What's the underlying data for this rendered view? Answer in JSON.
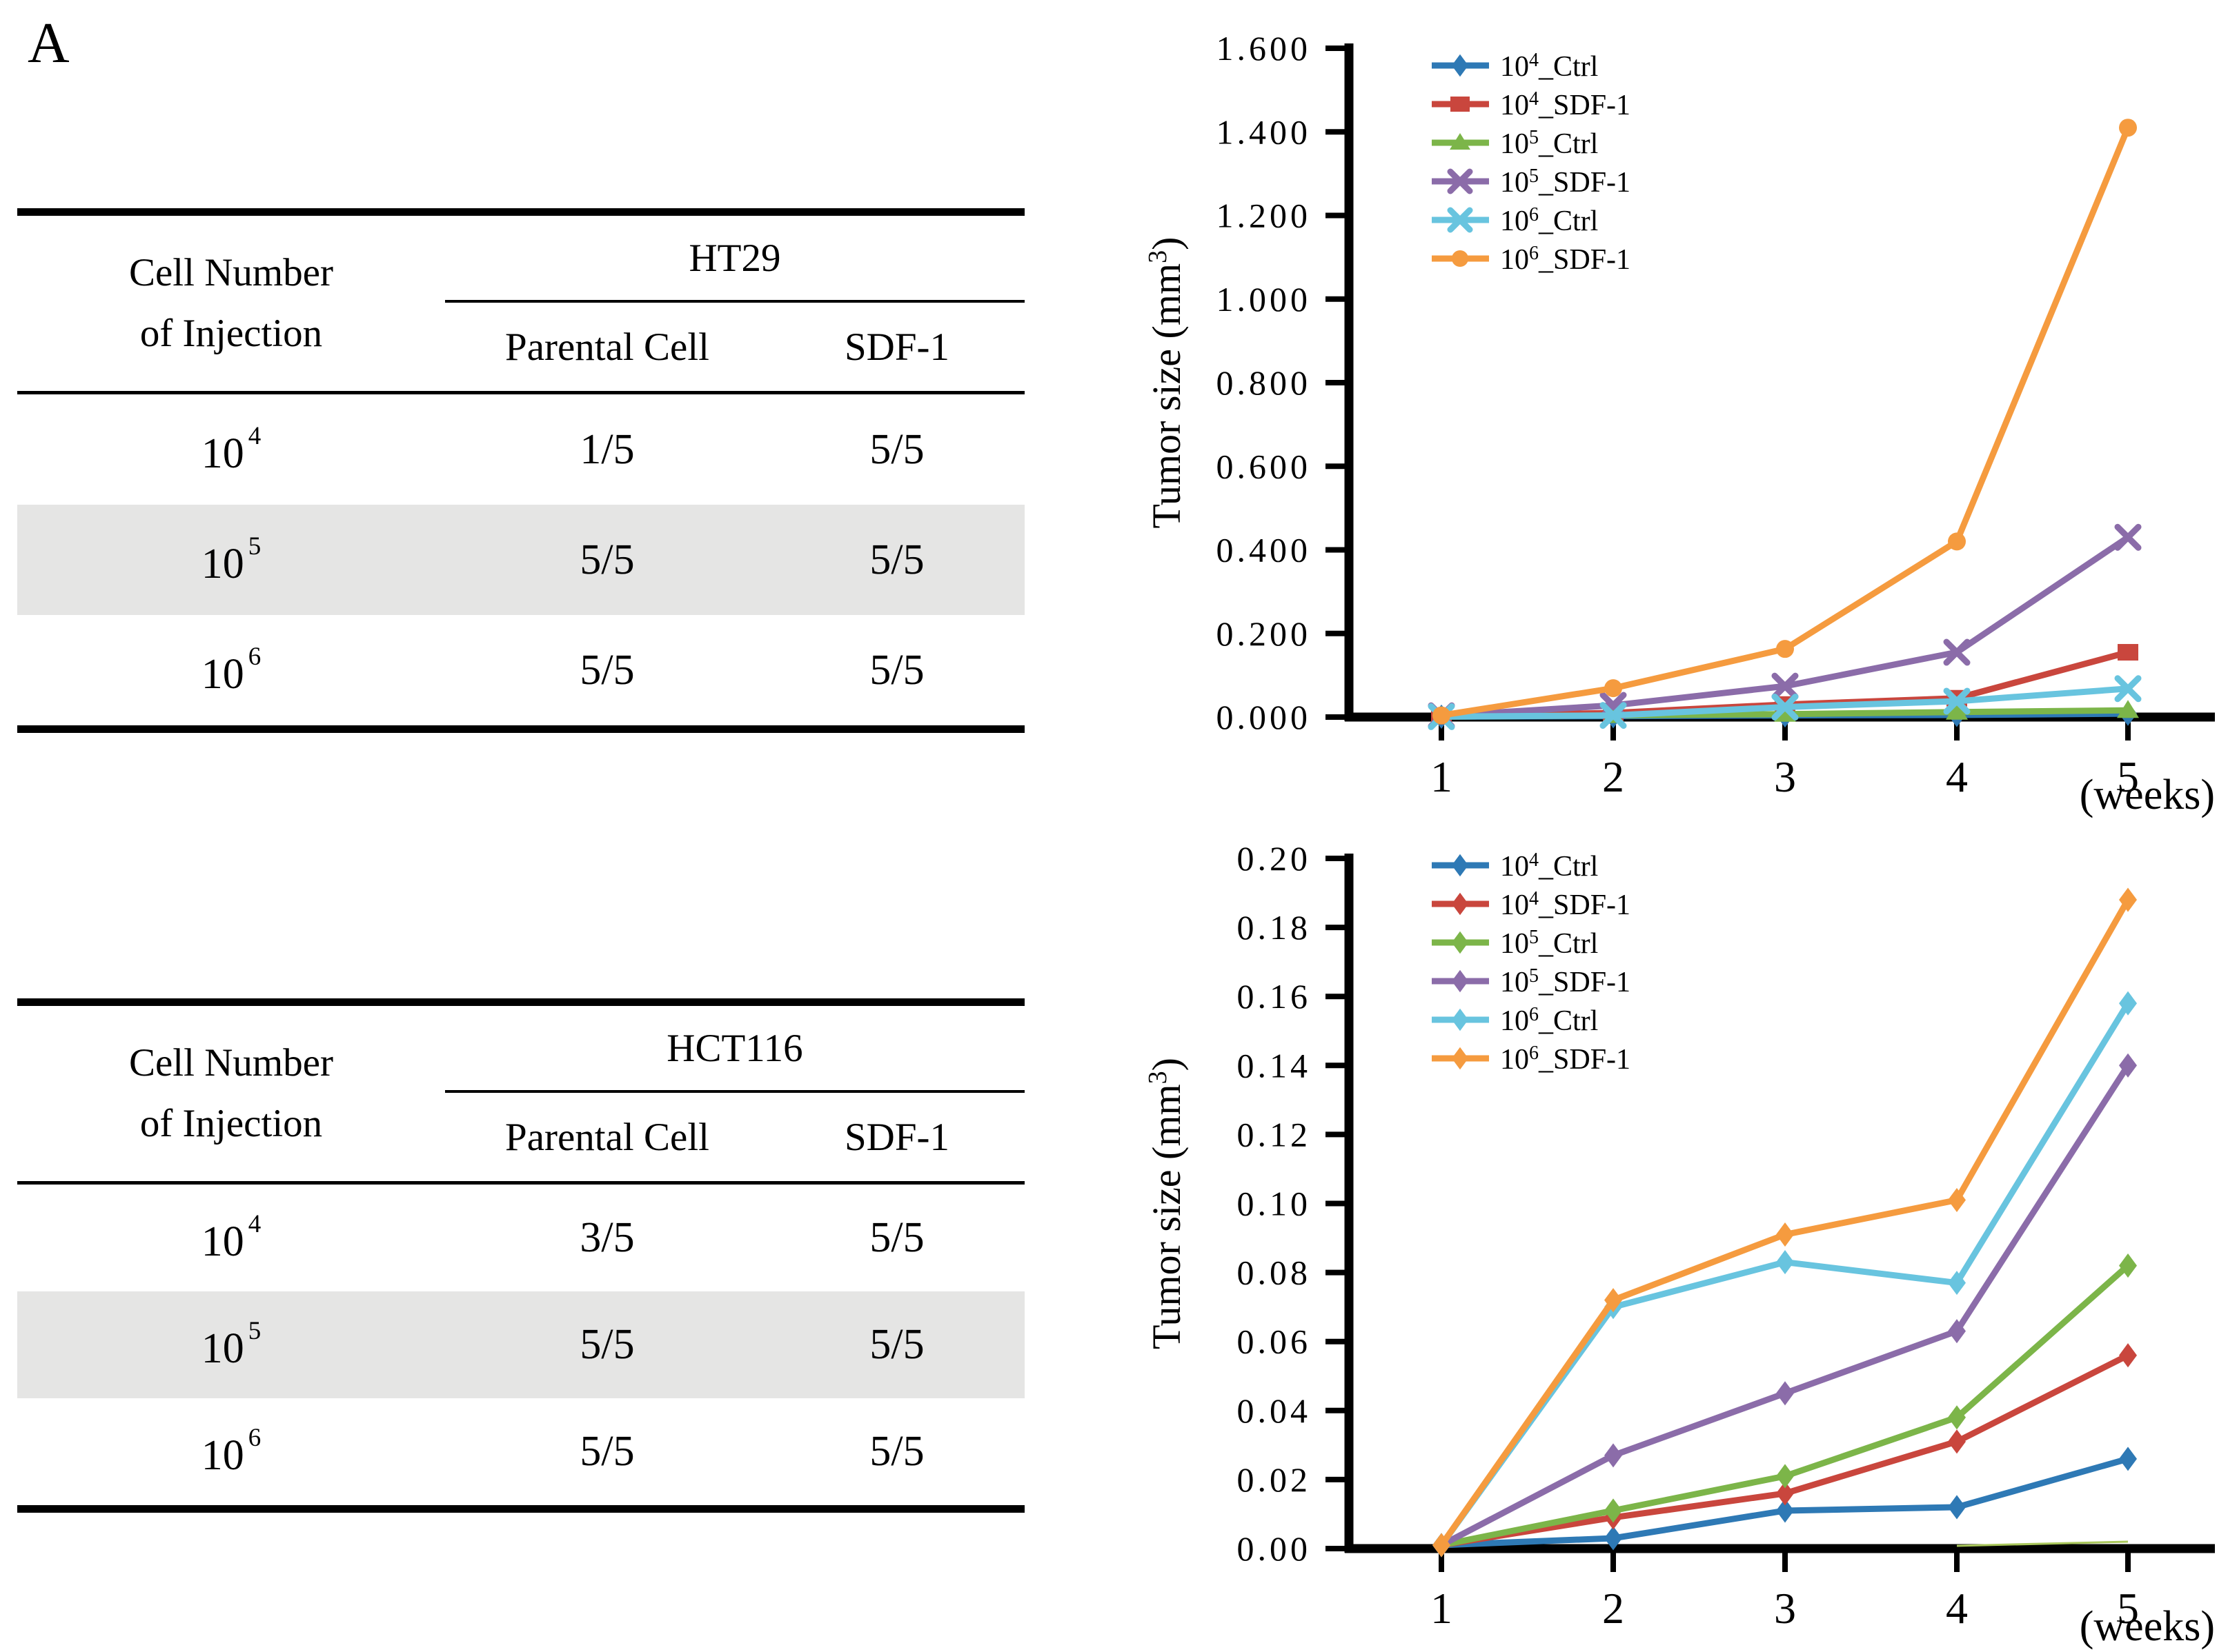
{
  "panel_label": "A",
  "tables": [
    {
      "group_title": "HT29",
      "row_header_line1": "Cell Number",
      "row_header_line2": "of Injection",
      "col_header_1": "Parental Cell",
      "col_header_2": "SDF-1",
      "rows": [
        {
          "base": "10",
          "exp": "4",
          "parental": "1/5",
          "sdf": "5/5",
          "shaded": false
        },
        {
          "base": "10",
          "exp": "5",
          "parental": "5/5",
          "sdf": "5/5",
          "shaded": true
        },
        {
          "base": "10",
          "exp": "6",
          "parental": "5/5",
          "sdf": "5/5",
          "shaded": false
        }
      ]
    },
    {
      "group_title": "HCT116",
      "row_header_line1": "Cell Number",
      "row_header_line2": "of Injection",
      "col_header_1": "Parental Cell",
      "col_header_2": "SDF-1",
      "rows": [
        {
          "base": "10",
          "exp": "4",
          "parental": "3/5",
          "sdf": "5/5",
          "shaded": false
        },
        {
          "base": "10",
          "exp": "5",
          "parental": "5/5",
          "sdf": "5/5",
          "shaded": true
        },
        {
          "base": "10",
          "exp": "6",
          "parental": "5/5",
          "sdf": "5/5",
          "shaded": false
        }
      ]
    }
  ],
  "chart_data": [
    {
      "type": "line",
      "cell_line": "HT29",
      "ylabel": "Tumor size (mm³)",
      "ylabel_main": "Tumor size (mm",
      "ylabel_sup": "3",
      "ylabel_close": ")",
      "xlabel": "(weeks)",
      "x": [
        1,
        2,
        3,
        4,
        5
      ],
      "xtick_labels": [
        "1",
        "2",
        "3",
        "4",
        "5"
      ],
      "ylim": [
        0,
        1.6
      ],
      "ystep": 0.2,
      "ytick_labels": [
        "0.000",
        "0.200",
        "0.400",
        "0.600",
        "0.800",
        "1.000",
        "1.200",
        "1.400",
        "1.600"
      ],
      "grid": false,
      "legend_position": "upper-left",
      "series": [
        {
          "label": "10⁴_Ctrl",
          "prefix": "10",
          "exp": "4",
          "suffix": "_Ctrl",
          "color": "#2E79B5",
          "marker": "diamond",
          "values": [
            0.001,
            0.002,
            0.004,
            0.005,
            0.008
          ]
        },
        {
          "label": "10⁴_SDF-1",
          "prefix": "10",
          "exp": "4",
          "suffix": "_SDF-1",
          "color": "#C9463D",
          "marker": "square",
          "values": [
            0.002,
            0.01,
            0.03,
            0.045,
            0.155
          ]
        },
        {
          "label": "10⁵_Ctrl",
          "prefix": "10",
          "exp": "5",
          "suffix": "_Ctrl",
          "color": "#7CB549",
          "marker": "triangle",
          "values": [
            0.001,
            0.004,
            0.007,
            0.012,
            0.016
          ]
        },
        {
          "label": "10⁵_SDF-1",
          "prefix": "10",
          "exp": "5",
          "suffix": "_SDF-1",
          "color": "#8B6CA9",
          "marker": "x",
          "values": [
            0.003,
            0.028,
            0.074,
            0.155,
            0.43
          ]
        },
        {
          "label": "10⁶_Ctrl",
          "prefix": "10",
          "exp": "6",
          "suffix": "_Ctrl",
          "color": "#68C4DF",
          "marker": "x",
          "values": [
            0.001,
            0.004,
            0.024,
            0.038,
            0.068
          ]
        },
        {
          "label": "10⁶_SDF-1",
          "prefix": "10",
          "exp": "6",
          "suffix": "_SDF-1",
          "color": "#F59B3F",
          "marker": "circle",
          "values": [
            0.004,
            0.069,
            0.163,
            0.42,
            1.41
          ]
        }
      ]
    },
    {
      "type": "line",
      "cell_line": "HCT116",
      "ylabel": "Tumor size (mm³)",
      "ylabel_main": "Tumor size (mm",
      "ylabel_sup": "3",
      "ylabel_close": ")",
      "xlabel": "(weeks)",
      "x": [
        1,
        2,
        3,
        4,
        5
      ],
      "xtick_labels": [
        "1",
        "2",
        "3",
        "4",
        "5"
      ],
      "ylim": [
        0,
        0.2
      ],
      "ystep": 0.02,
      "ytick_labels": [
        "0.00",
        "0.02",
        "0.04",
        "0.06",
        "0.08",
        "0.10",
        "0.12",
        "0.14",
        "0.16",
        "0.18",
        "0.20"
      ],
      "grid": false,
      "legend_position": "upper-left",
      "series": [
        {
          "label": "10⁴_Ctrl",
          "prefix": "10",
          "exp": "4",
          "suffix": "_Ctrl",
          "color": "#2E79B5",
          "marker": "diamond",
          "values": [
            0.001,
            0.003,
            0.011,
            0.012,
            0.026
          ]
        },
        {
          "label": "10⁴_SDF-1",
          "prefix": "10",
          "exp": "4",
          "suffix": "_SDF-1",
          "color": "#C9463D",
          "marker": "diamond",
          "values": [
            0.001,
            0.009,
            0.016,
            0.031,
            0.056
          ]
        },
        {
          "label": "10⁵_Ctrl",
          "prefix": "10",
          "exp": "5",
          "suffix": "_Ctrl",
          "color": "#7CB549",
          "marker": "diamond",
          "values": [
            0.001,
            0.011,
            0.021,
            0.038,
            0.082
          ]
        },
        {
          "label": "10⁵_SDF-1",
          "prefix": "10",
          "exp": "5",
          "suffix": "_SDF-1",
          "color": "#8B6CA9",
          "marker": "diamond",
          "values": [
            0.001,
            0.027,
            0.045,
            0.063,
            0.14
          ]
        },
        {
          "label": "10⁶_Ctrl",
          "prefix": "10",
          "exp": "6",
          "suffix": "_Ctrl",
          "color": "#68C4DF",
          "marker": "diamond",
          "values": [
            0.001,
            0.07,
            0.083,
            0.077,
            0.158
          ]
        },
        {
          "label": "10⁶_SDF-1",
          "prefix": "10",
          "exp": "6",
          "suffix": "_SDF-1",
          "color": "#F59B3F",
          "marker": "diamond",
          "values": [
            0.001,
            0.072,
            0.091,
            0.101,
            0.188
          ]
        }
      ],
      "artifact_series": {
        "color": "#A9C75B",
        "values": [
          null,
          null,
          null,
          0.0008,
          0.002
        ]
      }
    }
  ]
}
